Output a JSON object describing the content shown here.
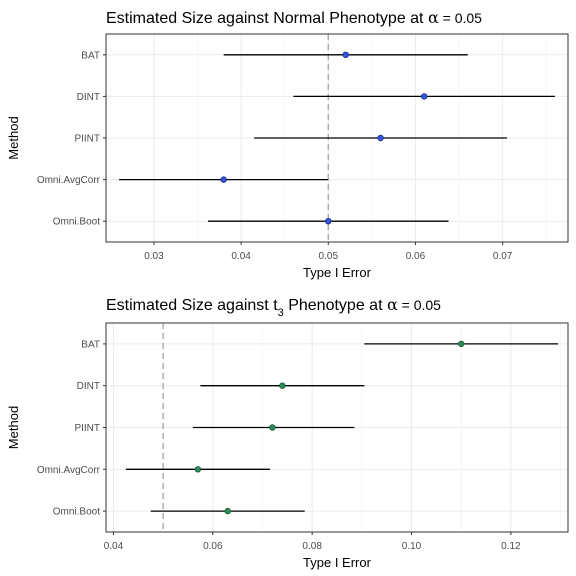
{
  "chart_data": [
    {
      "type": "scatter",
      "title": {
        "main": "Estimated Size against Normal Phenotype at ",
        "symbol": "α",
        "rest": " = 0.05"
      },
      "xlabel": "Type I Error",
      "ylabel": "Method",
      "xlim": [
        0.0245,
        0.0775
      ],
      "xticks": [
        0.03,
        0.04,
        0.05,
        0.06,
        0.07
      ],
      "xtick_labels": [
        "0.03",
        "0.04",
        "0.05",
        "0.06",
        "0.07"
      ],
      "reference_line": 0.05,
      "grid": true,
      "point_color": "#3355dd",
      "point_stroke": "#1a2a88",
      "categories": [
        "BAT",
        "DINT",
        "PIINT",
        "Omni.AvgCorr",
        "Omni.Boot"
      ],
      "points": [
        {
          "method": "BAT",
          "estimate": 0.052,
          "lower": 0.038,
          "upper": 0.066
        },
        {
          "method": "DINT",
          "estimate": 0.061,
          "lower": 0.046,
          "upper": 0.076
        },
        {
          "method": "PIINT",
          "estimate": 0.056,
          "lower": 0.0415,
          "upper": 0.0705
        },
        {
          "method": "Omni.AvgCorr",
          "estimate": 0.038,
          "lower": 0.026,
          "upper": 0.05
        },
        {
          "method": "Omni.Boot",
          "estimate": 0.05,
          "lower": 0.0362,
          "upper": 0.0638
        }
      ]
    },
    {
      "type": "scatter",
      "title": {
        "main": "Estimated Size against t",
        "sub": "3",
        "after_sub": " Phenotype at ",
        "symbol": "α",
        "rest": " = 0.05"
      },
      "xlabel": "Type I Error",
      "ylabel": "Method",
      "xlim": [
        0.0385,
        0.1315
      ],
      "xticks": [
        0.04,
        0.06,
        0.08,
        0.1,
        0.12
      ],
      "xtick_labels": [
        "0.04",
        "0.06",
        "0.08",
        "0.10",
        "0.12"
      ],
      "reference_line": 0.05,
      "grid": true,
      "point_color": "#2e8b57",
      "point_stroke": "#145a32",
      "categories": [
        "BAT",
        "DINT",
        "PIINT",
        "Omni.AvgCorr",
        "Omni.Boot"
      ],
      "points": [
        {
          "method": "BAT",
          "estimate": 0.11,
          "lower": 0.0905,
          "upper": 0.1295
        },
        {
          "method": "DINT",
          "estimate": 0.074,
          "lower": 0.0575,
          "upper": 0.0905
        },
        {
          "method": "PIINT",
          "estimate": 0.072,
          "lower": 0.056,
          "upper": 0.0885
        },
        {
          "method": "Omni.AvgCorr",
          "estimate": 0.057,
          "lower": 0.0425,
          "upper": 0.0715
        },
        {
          "method": "Omni.Boot",
          "estimate": 0.063,
          "lower": 0.0475,
          "upper": 0.0785
        }
      ]
    }
  ]
}
